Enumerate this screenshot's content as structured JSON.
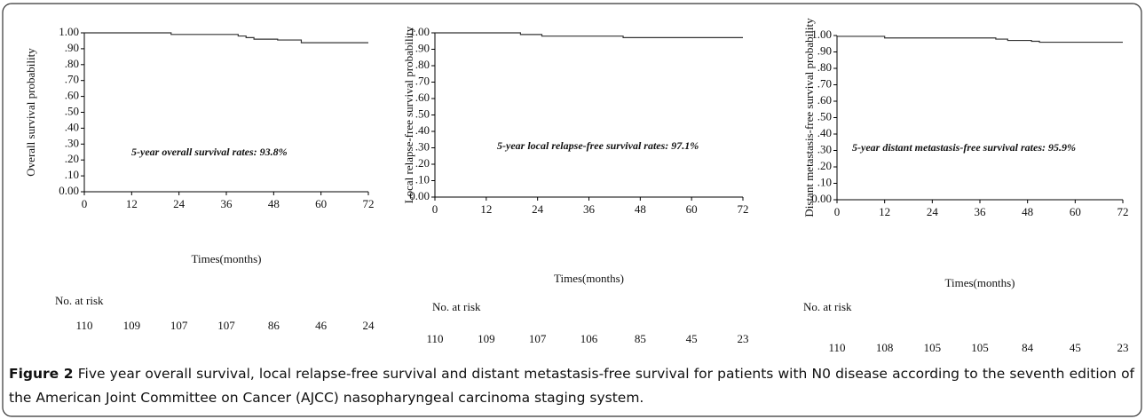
{
  "chart_data": [
    {
      "type": "line",
      "y_label": "Overall survival probability",
      "x_label": "Times(months)",
      "annotation": "5-year overall survival rates: 93.8%",
      "xlim": [
        0,
        72
      ],
      "xticks": [
        0,
        12,
        24,
        36,
        48,
        60,
        72
      ],
      "ylim": [
        0,
        1
      ],
      "yticks": [
        {
          "value": 0,
          "label": "0.00"
        },
        {
          "value": 0.1,
          "label": ".10"
        },
        {
          "value": 0.2,
          "label": ".20"
        },
        {
          "value": 0.3,
          "label": ".30"
        },
        {
          "value": 0.4,
          "label": ".40"
        },
        {
          "value": 0.5,
          "label": ".50"
        },
        {
          "value": 0.6,
          "label": ".60"
        },
        {
          "value": 0.7,
          "label": ".70"
        },
        {
          "value": 0.8,
          "label": ".80"
        },
        {
          "value": 0.9,
          "label": ".90"
        },
        {
          "value": 1,
          "label": "1.00"
        }
      ],
      "series": [
        {
          "color": "#333333",
          "x": [
            0,
            22,
            22,
            39,
            39,
            41,
            41,
            43,
            43,
            49,
            49,
            55,
            55,
            72
          ],
          "values": [
            1,
            1,
            0.99,
            0.99,
            0.98,
            0.98,
            0.97,
            0.97,
            0.96,
            0.96,
            0.955,
            0.955,
            0.938,
            0.938
          ]
        }
      ],
      "at_risk": {
        "label": "No. at risk",
        "values": [
          110,
          109,
          107,
          107,
          86,
          46,
          24
        ]
      }
    },
    {
      "type": "line",
      "y_label": "Local relapse-free survival probability",
      "x_label": "Times(months)",
      "annotation": "5-year local relapse-free survival rates: 97.1%",
      "xlim": [
        0,
        72
      ],
      "xticks": [
        0,
        12,
        24,
        36,
        48,
        60,
        72
      ],
      "ylim": [
        0,
        1
      ],
      "yticks": [
        {
          "value": 0,
          "label": "0.00"
        },
        {
          "value": 0.1,
          "label": ".10"
        },
        {
          "value": 0.2,
          "label": ".20"
        },
        {
          "value": 0.3,
          "label": ".30"
        },
        {
          "value": 0.4,
          "label": ".40"
        },
        {
          "value": 0.5,
          "label": ".50"
        },
        {
          "value": 0.6,
          "label": ".60"
        },
        {
          "value": 0.7,
          "label": ".70"
        },
        {
          "value": 0.8,
          "label": ".80"
        },
        {
          "value": 0.9,
          "label": ".90"
        },
        {
          "value": 1,
          "label": "1.00"
        }
      ],
      "series": [
        {
          "color": "#333333",
          "x": [
            0,
            20,
            20,
            25,
            25,
            44,
            44,
            72
          ],
          "values": [
            1,
            1,
            0.99,
            0.99,
            0.98,
            0.98,
            0.971,
            0.971
          ]
        }
      ],
      "at_risk": {
        "label": "No. at risk",
        "values": [
          110,
          109,
          107,
          106,
          85,
          45,
          23
        ]
      }
    },
    {
      "type": "line",
      "y_label": "Distant metastasis-free survival probability",
      "x_label": "Times(months)",
      "annotation": "5-year distant metastasis-free survival rates: 95.9%",
      "xlim": [
        0,
        72
      ],
      "xticks": [
        0,
        12,
        24,
        36,
        48,
        60,
        72
      ],
      "ylim": [
        0,
        1
      ],
      "yticks": [
        {
          "value": 0,
          "label": "0.00"
        },
        {
          "value": 0.1,
          "label": ".10"
        },
        {
          "value": 0.2,
          "label": ".20"
        },
        {
          "value": 0.3,
          "label": ".30"
        },
        {
          "value": 0.4,
          "label": ".40"
        },
        {
          "value": 0.5,
          "label": ".50"
        },
        {
          "value": 0.6,
          "label": ".60"
        },
        {
          "value": 0.7,
          "label": ".70"
        },
        {
          "value": 0.8,
          "label": ".80"
        },
        {
          "value": 0.9,
          "label": ".90"
        },
        {
          "value": 1,
          "label": "1.00"
        }
      ],
      "series": [
        {
          "color": "#333333",
          "x": [
            0,
            12,
            12,
            40,
            40,
            43,
            43,
            49,
            49,
            51,
            51,
            72
          ],
          "values": [
            0.995,
            0.995,
            0.985,
            0.985,
            0.978,
            0.978,
            0.97,
            0.97,
            0.965,
            0.965,
            0.959,
            0.959
          ]
        }
      ],
      "at_risk": {
        "label": "No. at risk",
        "values": [
          110,
          108,
          105,
          105,
          84,
          45,
          23
        ]
      }
    }
  ],
  "caption": {
    "label": "Figure 2",
    "text": "Five year overall survival, local relapse-free survival and distant metastasis-free survival for patients with N0 disease according to the seventh edition of the American Joint Committee on Cancer (AJCC) nasopharyngeal carcinoma staging system."
  }
}
